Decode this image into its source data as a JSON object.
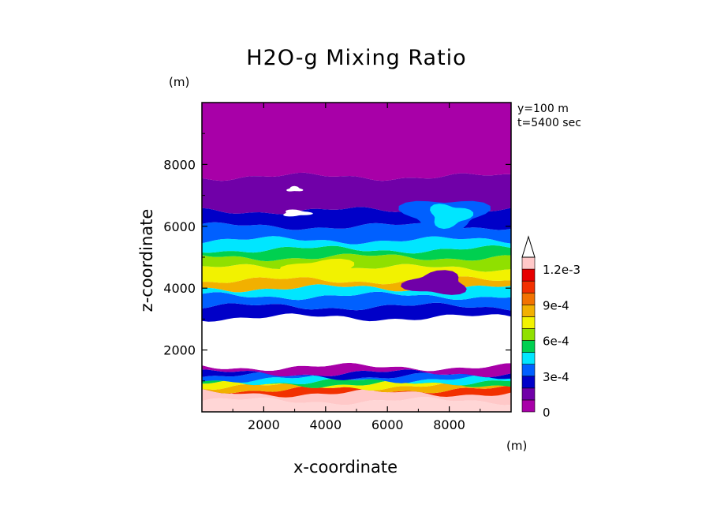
{
  "chart_data": {
    "type": "heatmap",
    "title": "H2O-g Mixing Ratio",
    "xlabel": "x-coordinate",
    "ylabel": "z-coordinate",
    "x_unit": "(m)",
    "y_unit": "(m)",
    "annotations": [
      "y=100 m",
      "t=5400 sec"
    ],
    "xlim": [
      0,
      10000
    ],
    "ylim": [
      0,
      10000
    ],
    "x_ticks": [
      2000,
      4000,
      6000,
      8000
    ],
    "y_ticks": [
      2000,
      4000,
      6000,
      8000
    ],
    "grid": false,
    "legend_position": "right",
    "colorbar": {
      "levels": [
        0,
        0.0001,
        0.0002,
        0.0003,
        0.0004,
        0.0005,
        0.0006,
        0.0007,
        0.0008,
        0.0009,
        0.001,
        0.0011,
        0.0012
      ],
      "tick_labels": [
        "0",
        "3e-4",
        "6e-4",
        "9e-4",
        "1.2e-3"
      ],
      "tick_values": [
        0,
        0.0003,
        0.0006,
        0.0009,
        0.0012
      ],
      "colors": [
        "#a800a8",
        "#7000a8",
        "#0000c8",
        "#0060ff",
        "#00e6ff",
        "#00d050",
        "#90e000",
        "#f2f200",
        "#f2b000",
        "#f27200",
        "#f23000",
        "#e60000",
        "#ffc8c8"
      ],
      "extend_max": true
    },
    "bands": [
      {
        "z": [
          0,
          350
        ],
        "color": "#ffd6d6"
      },
      {
        "z": [
          350,
          600
        ],
        "color": "#ffc8c8"
      },
      {
        "z": [
          600,
          720
        ],
        "color": "#f23000"
      },
      {
        "z": [
          720,
          820
        ],
        "color": "#f2b000"
      },
      {
        "z": [
          820,
          900
        ],
        "color": "#f2f200"
      },
      {
        "z": [
          900,
          980
        ],
        "color": "#00d050"
      },
      {
        "z": [
          980,
          1060
        ],
        "color": "#00e6ff"
      },
      {
        "z": [
          1060,
          1150
        ],
        "color": "#0060ff"
      },
      {
        "z": [
          1150,
          1250
        ],
        "color": "#0000c8"
      },
      {
        "z": [
          1250,
          1450
        ],
        "color": "#a800a8"
      },
      {
        "z": [
          1450,
          3050
        ],
        "color": "#ffffff"
      },
      {
        "z": [
          3050,
          3400
        ],
        "color": "#0000c8"
      },
      {
        "z": [
          3400,
          3750
        ],
        "color": "#0060ff"
      },
      {
        "z": [
          3750,
          4000
        ],
        "color": "#00e6ff"
      },
      {
        "z": [
          4000,
          4250
        ],
        "color": "#f2b000"
      },
      {
        "z": [
          4250,
          4650
        ],
        "color": "#f2f200"
      },
      {
        "z": [
          4650,
          5000
        ],
        "color": "#90e000"
      },
      {
        "z": [
          5000,
          5250
        ],
        "color": "#00d050"
      },
      {
        "z": [
          5250,
          5550
        ],
        "color": "#00e6ff"
      },
      {
        "z": [
          5550,
          6000
        ],
        "color": "#0060ff"
      },
      {
        "z": [
          6000,
          6500
        ],
        "color": "#0000c8"
      },
      {
        "z": [
          6500,
          7600
        ],
        "color": "#7000a8"
      },
      {
        "z": [
          7600,
          10000
        ],
        "color": "#a800a8"
      }
    ],
    "patches": [
      {
        "x": [
          6200,
          9500
        ],
        "z": [
          5800,
          7000
        ],
        "color": "#0060ff"
      },
      {
        "x": [
          7200,
          8800
        ],
        "z": [
          5900,
          6800
        ],
        "color": "#00e6ff"
      },
      {
        "x": [
          2500,
          3600
        ],
        "z": [
          6300,
          6550
        ],
        "color": "#ffffff"
      },
      {
        "x": [
          2700,
          3300
        ],
        "z": [
          7100,
          7300
        ],
        "color": "#ffffff"
      },
      {
        "x": [
          6400,
          8800
        ],
        "z": [
          3700,
          4600
        ],
        "color": "#7000a8"
      },
      {
        "x": [
          2500,
          5300
        ],
        "z": [
          4200,
          5000
        ],
        "color": "#f2f200"
      }
    ]
  }
}
